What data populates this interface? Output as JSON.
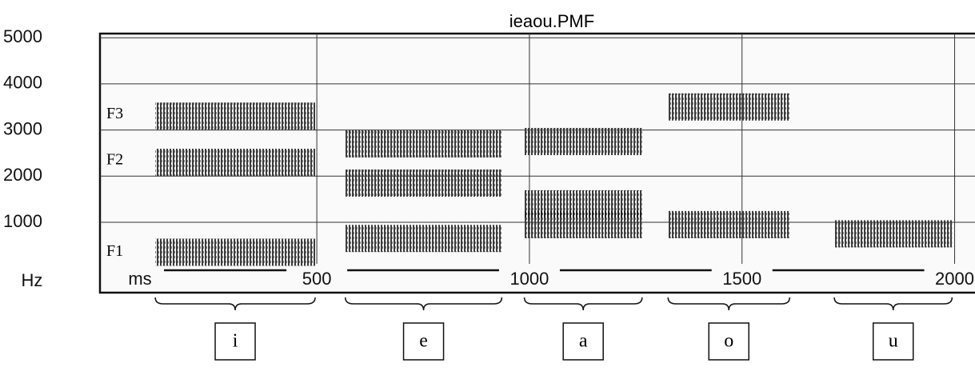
{
  "chart_data": {
    "type": "spectrogram",
    "title": "ieaou.PMF",
    "y_label": "Hz",
    "x_label": "ms",
    "xlim": [
      -10,
      2078
    ],
    "ylim": [
      -525,
      5090
    ],
    "xticks": [
      500,
      1000,
      1500,
      2000
    ],
    "yticks": [
      1000,
      2000,
      3000,
      4000,
      5000
    ],
    "grid": true,
    "categories": [
      "i",
      "e",
      "a",
      "o",
      "u"
    ],
    "segments": [
      [
        120,
        496
      ],
      [
        567,
        935
      ],
      [
        988,
        1265
      ],
      [
        1326,
        1612
      ],
      [
        1717,
        1994
      ]
    ],
    "series": [
      {
        "name": "F1",
        "color": "#1a1a1a",
        "values": [
          350,
          650,
          950,
          950,
          750
        ]
      },
      {
        "name": "F2",
        "color": "#2a2a2a",
        "values": [
          2300,
          1850,
          1400,
          null,
          null
        ]
      },
      {
        "name": "F3",
        "color": "#2a2a2a",
        "values": [
          3300,
          2700,
          2750,
          3500,
          null
        ]
      }
    ]
  }
}
